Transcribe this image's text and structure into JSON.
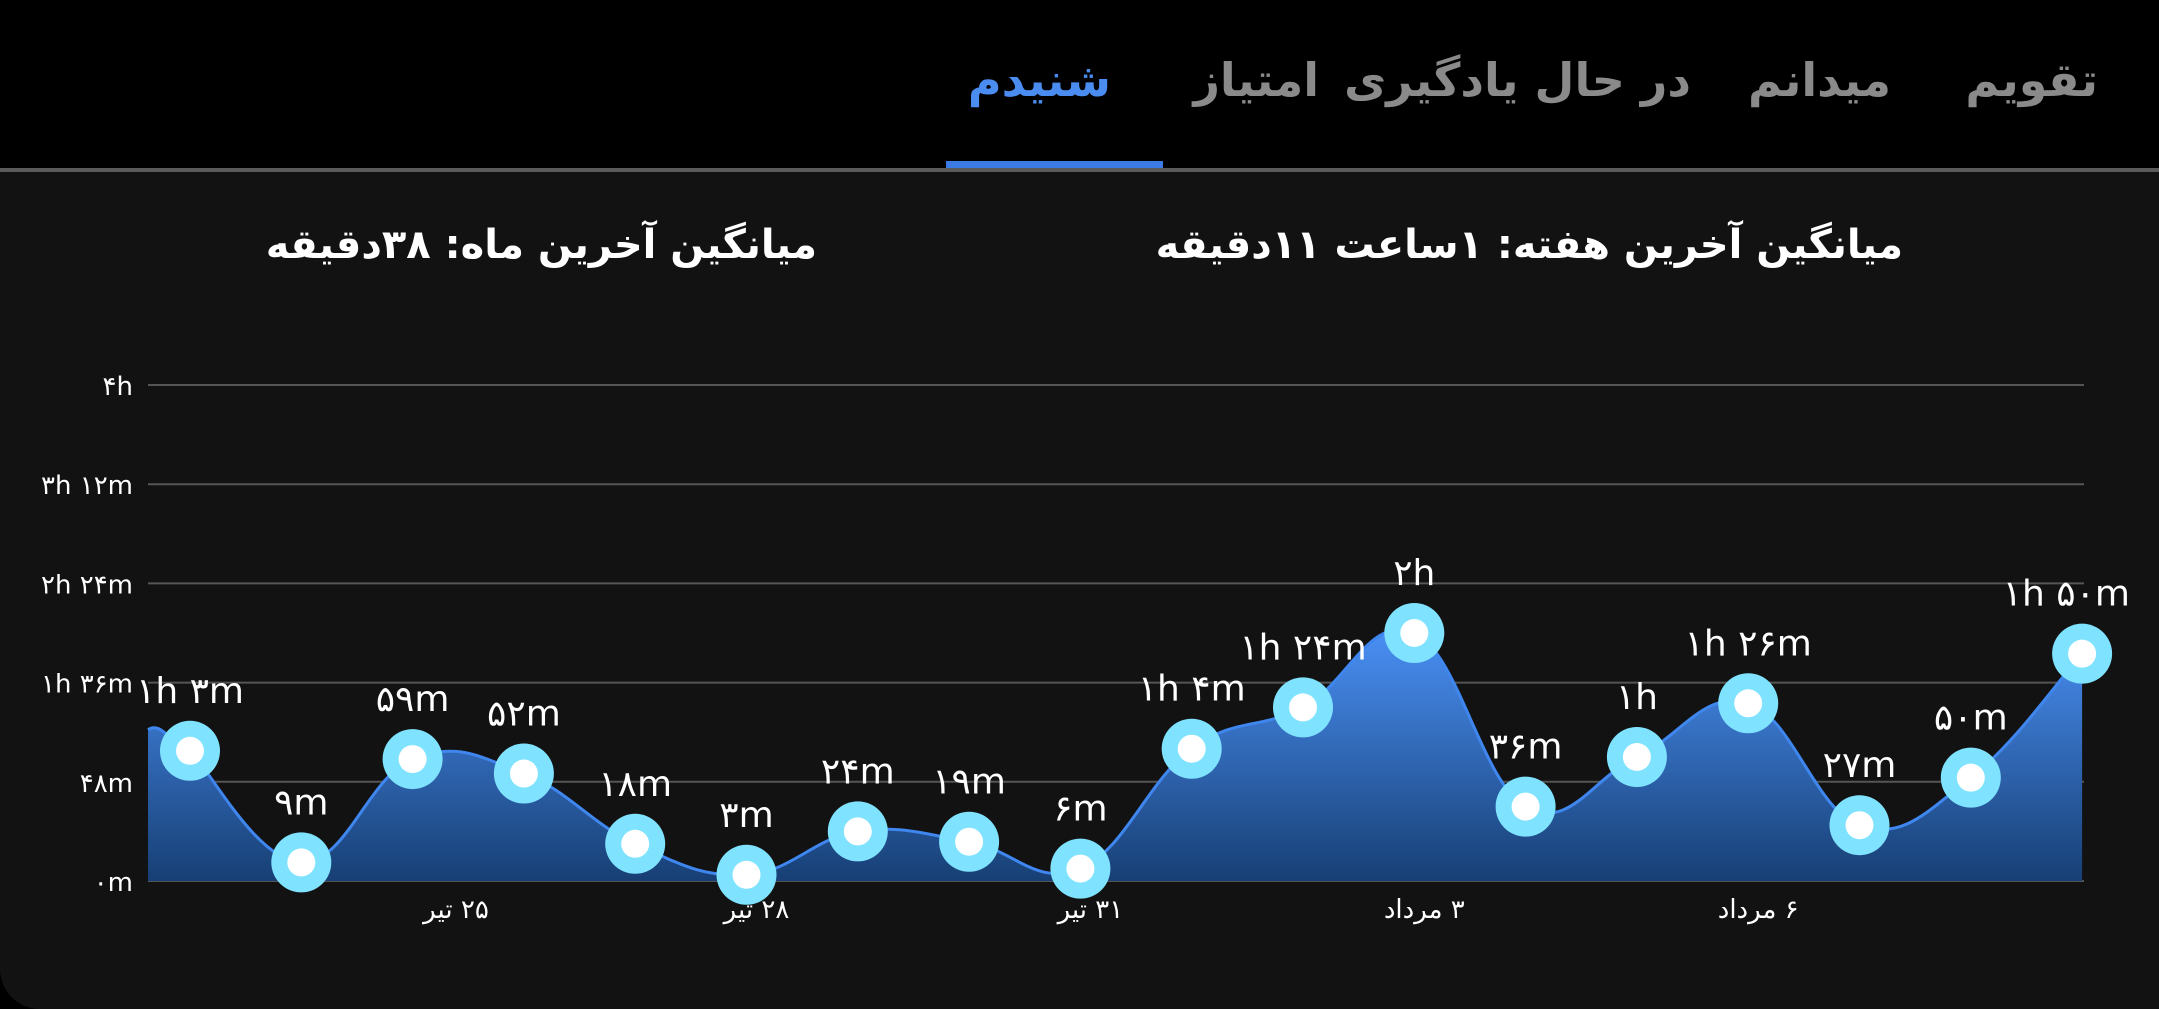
{
  "tabs": [
    {
      "label": "تقویم",
      "active": false
    },
    {
      "label": "میدانم",
      "active": false
    },
    {
      "label": "در حال یادگیری",
      "active": false
    },
    {
      "label": "امتیاز",
      "active": false
    },
    {
      "label": "شنیدم",
      "active": true
    }
  ],
  "summary": {
    "week": "میانگین آخرین هفته: ۱ساعت  ۱۱دقیقه",
    "month": "میانگین آخرین ماه: ۳۸دقیقه"
  },
  "colors": {
    "accent": "#4a8cf0",
    "line": "#3f86ee",
    "fill_top": "#4a90f5",
    "fill_bottom": "#173f74",
    "point_outer": "#7fe3ff",
    "point_inner": "#ffffff",
    "grid": "#555555",
    "tab_inactive": "#8a8a8a"
  },
  "chart_data": {
    "type": "area",
    "ylim": [
      0,
      240
    ],
    "y_ticks": [
      {
        "value": 0,
        "label": "۰m"
      },
      {
        "value": 48,
        "label": "۴۸m"
      },
      {
        "value": 96,
        "label": "۱h ۳۶m"
      },
      {
        "value": 144,
        "label": "۲h ۲۴m"
      },
      {
        "value": 192,
        "label": "۳h ۱۲m"
      },
      {
        "value": 240,
        "label": "۴h"
      }
    ],
    "x_ticks": [
      {
        "index": 2.3,
        "label": "۲۵ تیر"
      },
      {
        "index": 5,
        "label": "۲۸ تیر"
      },
      {
        "index": 8,
        "label": "۳۱ تیر"
      },
      {
        "index": 11,
        "label": "۳ مرداد"
      },
      {
        "index": 14,
        "label": "۶ مرداد"
      }
    ],
    "grid": true,
    "points": [
      {
        "value": 63,
        "label": "۱h ۳m"
      },
      {
        "value": 9,
        "label": "۹m"
      },
      {
        "value": 59,
        "label": "۵۹m"
      },
      {
        "value": 52,
        "label": "۵۲m"
      },
      {
        "value": 18,
        "label": "۱۸m"
      },
      {
        "value": 3,
        "label": "۳m"
      },
      {
        "value": 24,
        "label": "۲۴m"
      },
      {
        "value": 19,
        "label": "۱۹m"
      },
      {
        "value": 6,
        "label": "۶m"
      },
      {
        "value": 64,
        "label": "۱h ۴m"
      },
      {
        "value": 84,
        "label": "۱h ۲۴m"
      },
      {
        "value": 120,
        "label": "۲h"
      },
      {
        "value": 36,
        "label": "۳۶m"
      },
      {
        "value": 60,
        "label": "۱h"
      },
      {
        "value": 86,
        "label": "۱h ۲۶m"
      },
      {
        "value": 27,
        "label": "۲۷m"
      },
      {
        "value": 50,
        "label": "۵۰m"
      },
      {
        "value": 110,
        "label": "۱h ۵۰m"
      }
    ]
  }
}
